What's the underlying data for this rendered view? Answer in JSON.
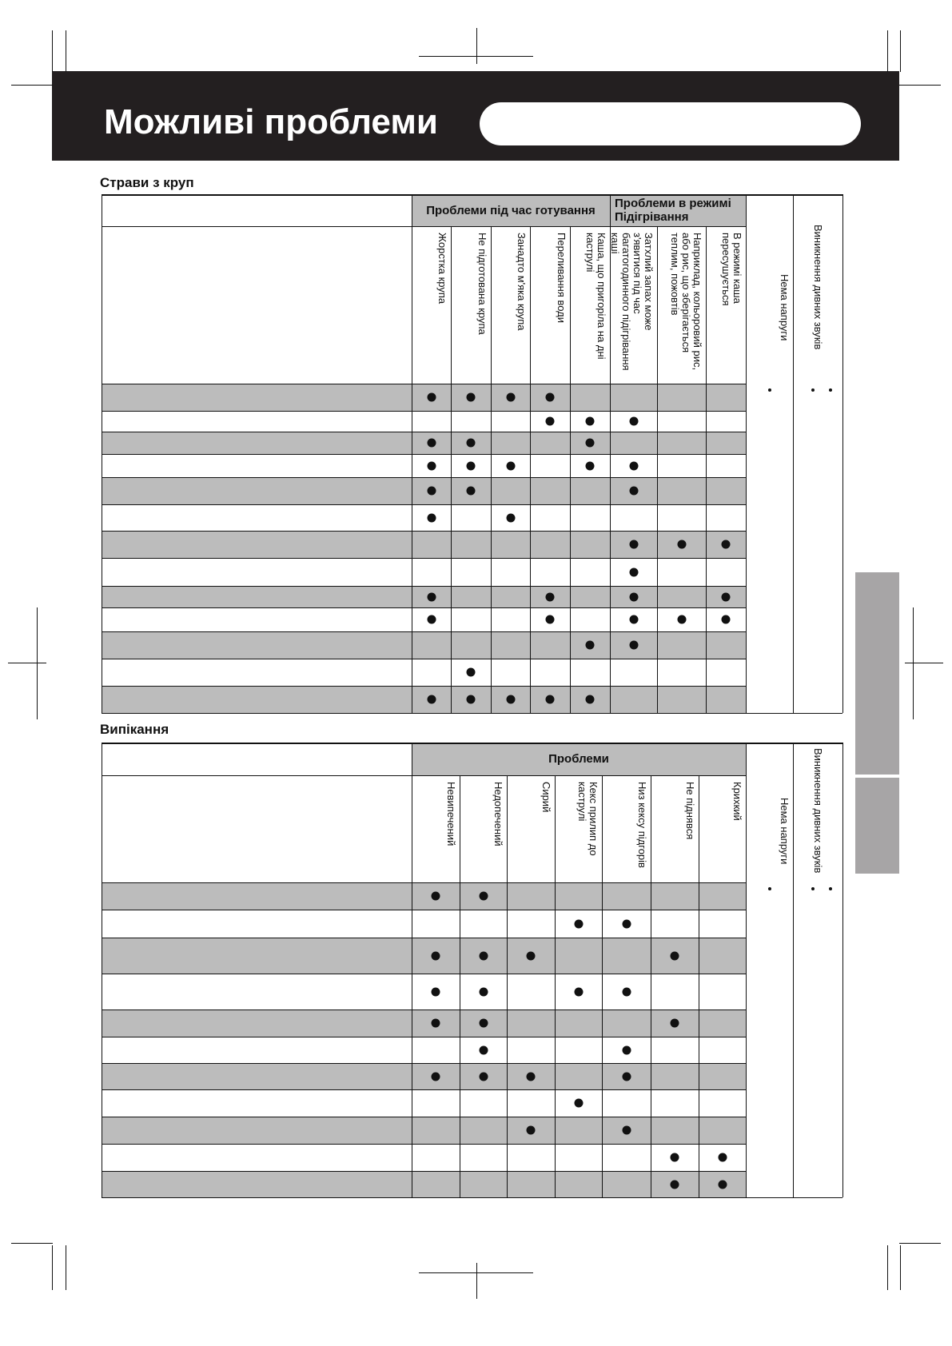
{
  "title": "Можливі проблеми",
  "colors": {
    "band": "#231f20",
    "row_shade": "#bcbcbc",
    "side_tab": "#a7a5a6"
  },
  "tables": [
    {
      "section": "Страви з круп",
      "groups": [
        {
          "label": "Проблеми під час готування",
          "span": 5
        },
        {
          "label": "Проблеми в режимі Підігрівання",
          "span": 3
        }
      ],
      "columns": [
        "Жорстка крупа",
        "Не підготована крупа",
        "Занадто м'яка крупа",
        "Переливання води",
        "Каша, що пригоріла на дні каструлі",
        "Затхлий запах може з'явитися під час багатогодинного підігрівання каші",
        "Наприклад, кольоровий рис, або рис, що зберігається теплим, пожовтів",
        "В режимі каша пересушується"
      ],
      "extra_columns": [
        "Нема напруги",
        "Виникнення дивних звуків"
      ],
      "rows": [
        [
          0,
          1,
          2,
          3
        ],
        [
          3,
          4,
          5
        ],
        [
          0,
          1,
          4
        ],
        [
          0,
          1,
          2,
          4,
          5
        ],
        [
          0,
          1,
          5
        ],
        [
          0,
          2
        ],
        [
          5,
          6,
          7
        ],
        [
          5
        ],
        [
          0,
          3,
          5,
          7
        ],
        [
          0,
          3,
          5,
          6,
          7
        ],
        [
          4,
          5
        ],
        [
          1
        ],
        [
          0,
          1,
          2,
          3,
          4
        ]
      ]
    },
    {
      "section": "Випікання",
      "groups": [
        {
          "label": "Проблеми",
          "span": 7
        }
      ],
      "columns": [
        "Невипечений",
        "Недопечений",
        "Сирий",
        "Кекс прилип до каструлі",
        "Низ кексу підгорів",
        "Не піднявся",
        "Крихкий"
      ],
      "extra_columns": [
        "Нема напруги",
        "Виникнення дивних звуків"
      ],
      "rows": [
        [
          0,
          1
        ],
        [
          3,
          4
        ],
        [
          0,
          1,
          2,
          5
        ],
        [
          0,
          1,
          3,
          4
        ],
        [
          0,
          1,
          5
        ],
        [
          1,
          4
        ],
        [
          0,
          1,
          2,
          4
        ],
        [
          3
        ],
        [
          2,
          4
        ],
        [
          5,
          6
        ],
        [
          5,
          6
        ]
      ]
    }
  ]
}
